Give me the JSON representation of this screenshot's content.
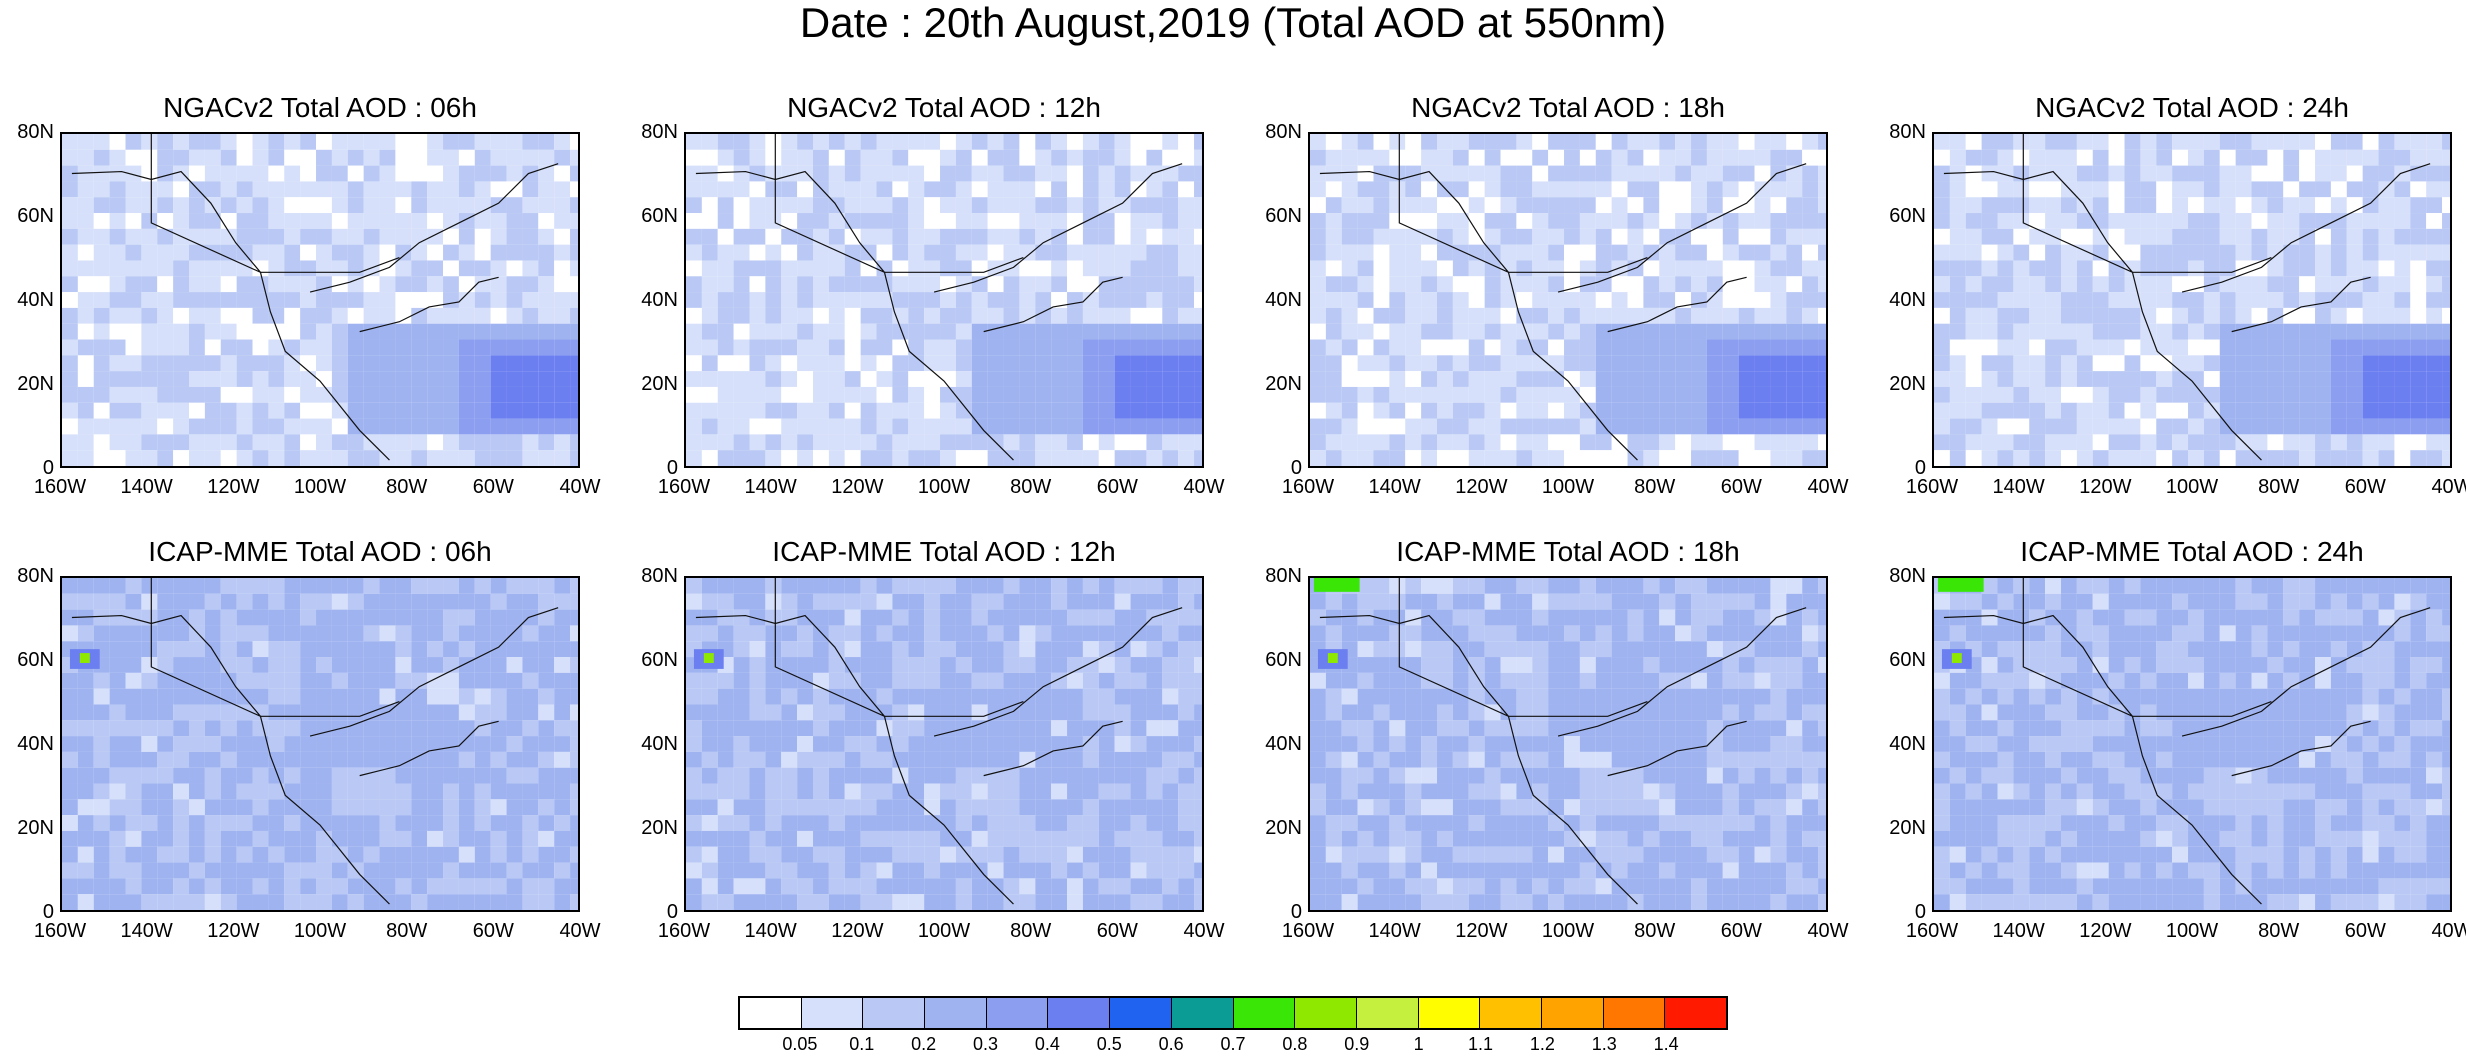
{
  "title": "Date : 20th August,2019 (Total AOD at 550nm)",
  "lat_labels": [
    "80N",
    "60N",
    "40N",
    "20N",
    "0"
  ],
  "lon_labels": [
    "160W",
    "140W",
    "120W",
    "100W",
    "80W",
    "60W",
    "40W"
  ],
  "panels": [
    {
      "title": "NGACv2 Total AOD : 06h",
      "model": "NGACv2",
      "hour": "06h"
    },
    {
      "title": "NGACv2 Total AOD : 12h",
      "model": "NGACv2",
      "hour": "12h"
    },
    {
      "title": "NGACv2 Total AOD : 18h",
      "model": "NGACv2",
      "hour": "18h"
    },
    {
      "title": "NGACv2 Total AOD : 24h",
      "model": "NGACv2",
      "hour": "24h"
    },
    {
      "title": "ICAP-MME Total AOD : 06h",
      "model": "ICAP-MME",
      "hour": "06h"
    },
    {
      "title": "ICAP-MME Total AOD : 12h",
      "model": "ICAP-MME",
      "hour": "12h"
    },
    {
      "title": "ICAP-MME Total AOD : 18h",
      "model": "ICAP-MME",
      "hour": "18h"
    },
    {
      "title": "ICAP-MME Total AOD : 24h",
      "model": "ICAP-MME",
      "hour": "24h"
    }
  ],
  "colorbar": {
    "labels": [
      "0.05",
      "0.1",
      "0.2",
      "0.3",
      "0.4",
      "0.5",
      "0.6",
      "0.7",
      "0.8",
      "0.9",
      "1",
      "1.1",
      "1.2",
      "1.3",
      "1.4"
    ],
    "colors": [
      "#ffffff",
      "#d6e0fa",
      "#b9c8f4",
      "#9fb3f1",
      "#8b9ef0",
      "#6b7ff0",
      "#1f63f0",
      "#0b9c95",
      "#3ae606",
      "#8ee800",
      "#c6f03e",
      "#fffd00",
      "#ffc000",
      "#ffa300",
      "#ff7700",
      "#ff1a00"
    ]
  },
  "map_extent": {
    "lon_min": -160,
    "lon_max": -40,
    "lat_min": 0,
    "lat_max": 80
  }
}
